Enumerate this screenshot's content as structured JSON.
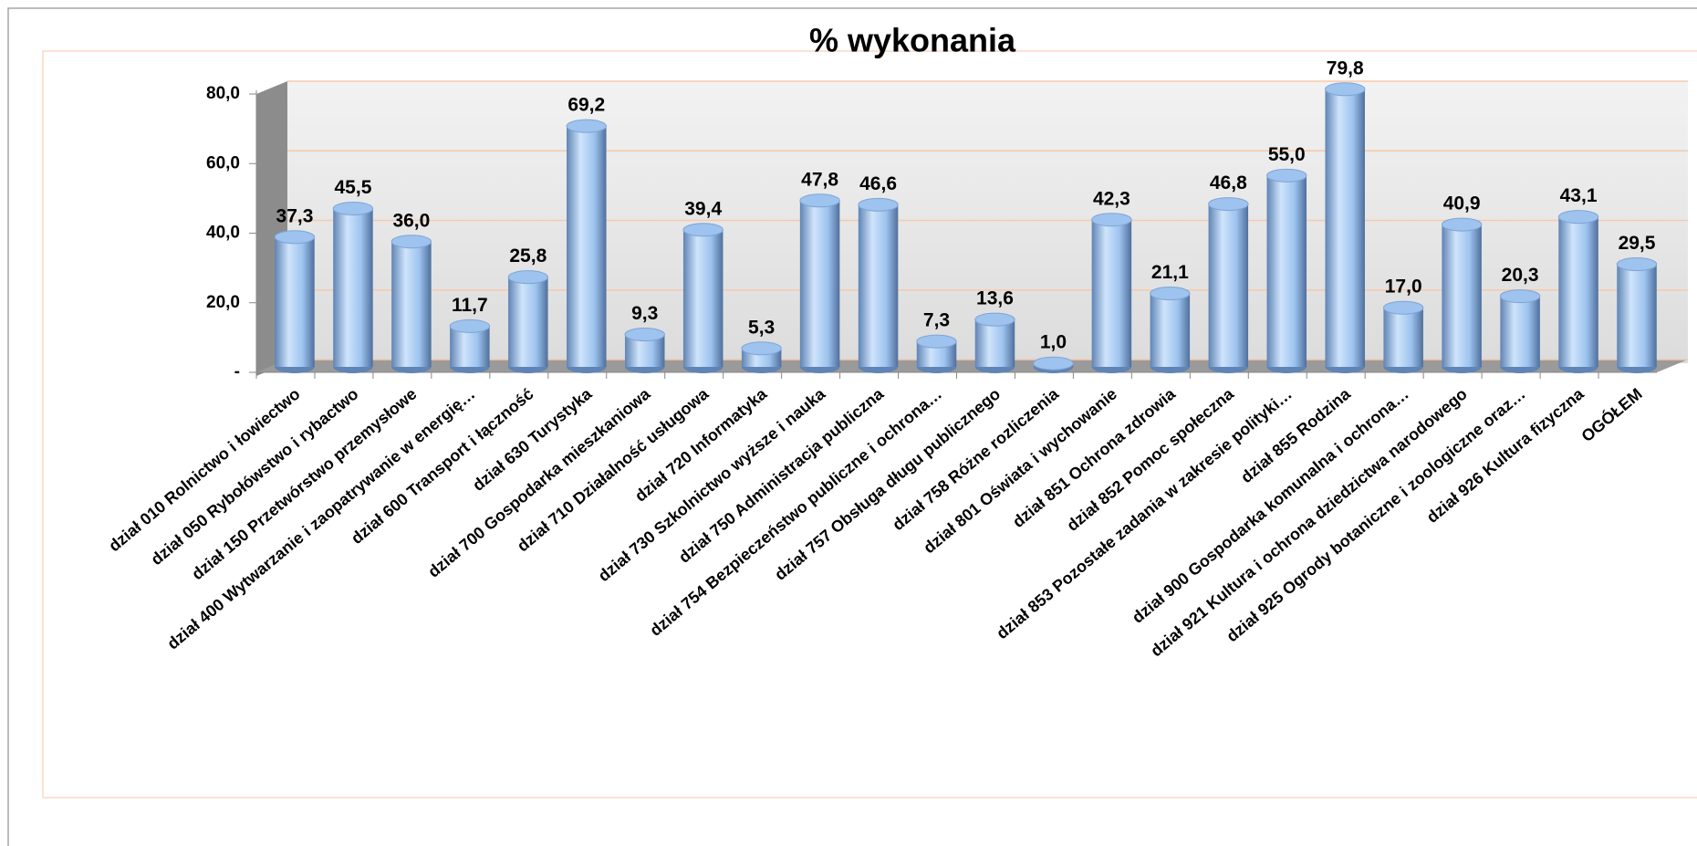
{
  "chart_data": {
    "type": "bar",
    "title": "% wykonania",
    "categories": [
      "dział 010 Rolnictwo i łowiectwo",
      "dział 050 Rybołówstwo i rybactwo",
      "dział 150 Przetwórstwo przemysłowe",
      "dział 400 Wytwarzanie i zaopatrywanie w energię…",
      "dział 600 Transport i łączność",
      "dział 630 Turystyka",
      "dział 700 Gospodarka mieszkaniowa",
      "dział 710 Działalność usługowa",
      "dział 720 Informatyka",
      "dział 730 Szkolnictwo wyższe i nauka",
      "dział 750 Administracja publiczna",
      "dział 754 Bezpieczeństwo publiczne i ochrona…",
      "dział 757 Obsługa długu publicznego",
      "dział 758 Różne rozliczenia",
      "dział 801 Oświata i wychowanie",
      "dział 851 Ochrona zdrowia",
      "dział 852 Pomoc społeczna",
      "dział 853 Pozostałe zadania w zakresie polityki…",
      "dział 855 Rodzina",
      "dział 900 Gospodarka komunalna i ochrona…",
      "dział 921 Kultura i ochrona dziedzictwa narodowego",
      "dział 925 Ogrody botaniczne i zoologiczne oraz…",
      "dział 926 Kultura fizyczna",
      "OGÓŁEM"
    ],
    "values": [
      37.3,
      45.5,
      36.0,
      11.7,
      25.8,
      69.2,
      9.3,
      39.4,
      5.3,
      47.8,
      46.6,
      7.3,
      13.6,
      1.0,
      42.3,
      21.1,
      46.8,
      55.0,
      79.8,
      17.0,
      40.9,
      20.3,
      43.1,
      29.5
    ],
    "value_labels": [
      "37,3",
      "45,5",
      "36,0",
      "11,7",
      "25,8",
      "69,2",
      "9,3",
      "39,4",
      "5,3",
      "47,8",
      "46,6",
      "7,3",
      "13,6",
      "1,0",
      "42,3",
      "21,1",
      "46,8",
      "55,0",
      "79,8",
      "17,0",
      "40,9",
      "20,3",
      "43,1",
      "29,5"
    ],
    "color": "#9dc3ee",
    "ylim": [
      0,
      80
    ],
    "yticks": [
      {
        "value": 0,
        "label": "-"
      },
      {
        "value": 20,
        "label": "20,0"
      },
      {
        "value": 40,
        "label": "40,0"
      },
      {
        "value": 60,
        "label": "60,0"
      },
      {
        "value": 80,
        "label": "80,0"
      }
    ],
    "grid": true
  }
}
